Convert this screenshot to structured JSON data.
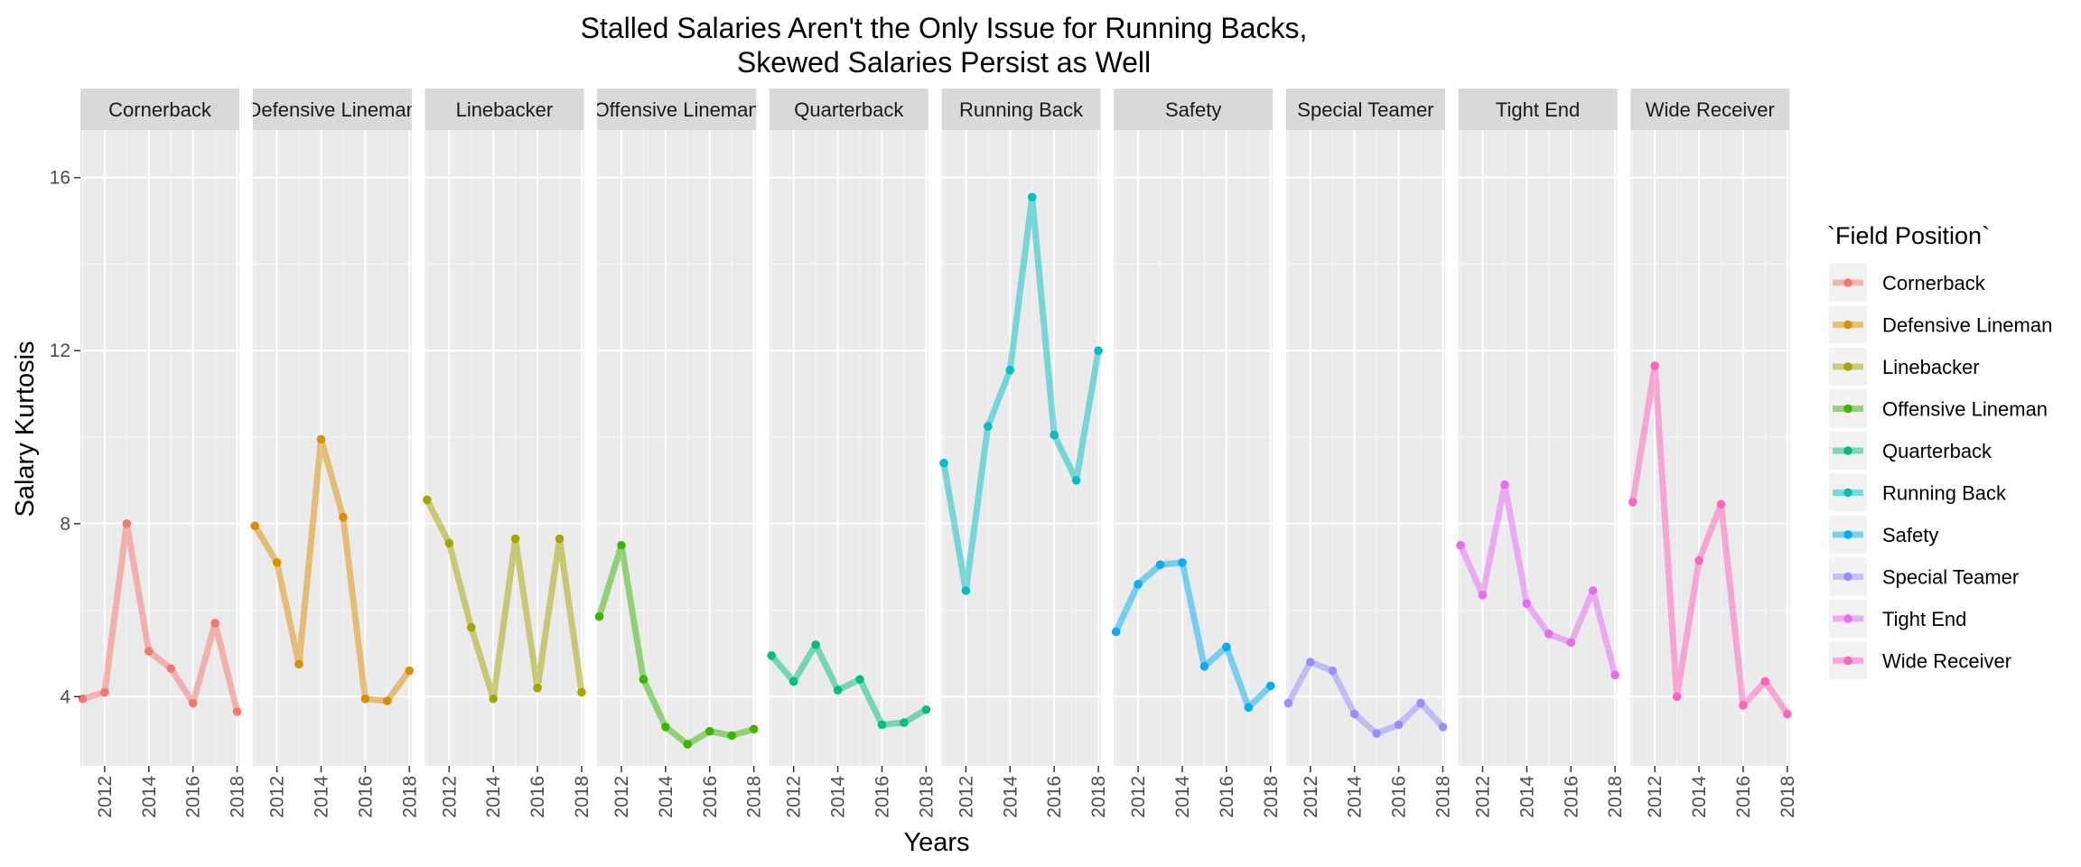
{
  "chart_data": {
    "type": "line",
    "title": "Stalled Salaries Aren't the Only Issue for Running Backs,",
    "subtitle": "Skewed Salaries Persist as Well",
    "xlabel": "Years",
    "ylabel": "Salary Kurtosis",
    "legend_title": "`Field Position`",
    "legend_position": "right",
    "grid": true,
    "facets": "one panel per series, shared y axis",
    "x": [
      2011,
      2012,
      2013,
      2014,
      2015,
      2016,
      2017,
      2018
    ],
    "x_ticks": [
      2012,
      2014,
      2016,
      2018
    ],
    "y_ticks": [
      4,
      8,
      12,
      16
    ],
    "ylim": [
      2.4,
      17.1
    ],
    "xlim": [
      2010.9,
      2018.1
    ],
    "series": [
      {
        "name": "Cornerback",
        "color": "#F8766D",
        "values": [
          3.95,
          4.1,
          8.0,
          5.05,
          4.65,
          3.85,
          5.7,
          3.65
        ]
      },
      {
        "name": "Defensive Lineman",
        "color": "#D89000",
        "values": [
          7.95,
          7.1,
          4.75,
          9.95,
          8.15,
          3.95,
          3.9,
          4.6
        ]
      },
      {
        "name": "Linebacker",
        "color": "#A3A500",
        "values": [
          8.55,
          7.55,
          5.6,
          3.95,
          7.65,
          4.2,
          7.65,
          4.1
        ]
      },
      {
        "name": "Offensive Lineman",
        "color": "#39B600",
        "values": [
          5.85,
          7.5,
          4.4,
          3.3,
          2.9,
          3.2,
          3.1,
          3.25
        ]
      },
      {
        "name": "Quarterback",
        "color": "#00BF7D",
        "values": [
          4.95,
          4.35,
          5.2,
          4.15,
          4.4,
          3.35,
          3.4,
          3.7
        ]
      },
      {
        "name": "Running Back",
        "color": "#00BFC4",
        "values": [
          9.4,
          6.45,
          10.25,
          11.55,
          15.55,
          10.05,
          9.0,
          12.0
        ]
      },
      {
        "name": "Safety",
        "color": "#00B0F6",
        "values": [
          5.5,
          6.6,
          7.05,
          7.1,
          4.7,
          5.15,
          3.75,
          4.25
        ]
      },
      {
        "name": "Special Teamer",
        "color": "#9590FF",
        "values": [
          3.85,
          4.8,
          4.6,
          3.6,
          3.15,
          3.35,
          3.85,
          3.3
        ]
      },
      {
        "name": "Tight End",
        "color": "#E76BF3",
        "values": [
          7.5,
          6.35,
          8.9,
          6.15,
          5.45,
          5.25,
          6.45,
          4.5
        ]
      },
      {
        "name": "Wide Receiver",
        "color": "#FF62BC",
        "values": [
          8.5,
          11.65,
          4.0,
          7.15,
          8.45,
          3.8,
          4.35,
          3.6
        ]
      }
    ]
  }
}
